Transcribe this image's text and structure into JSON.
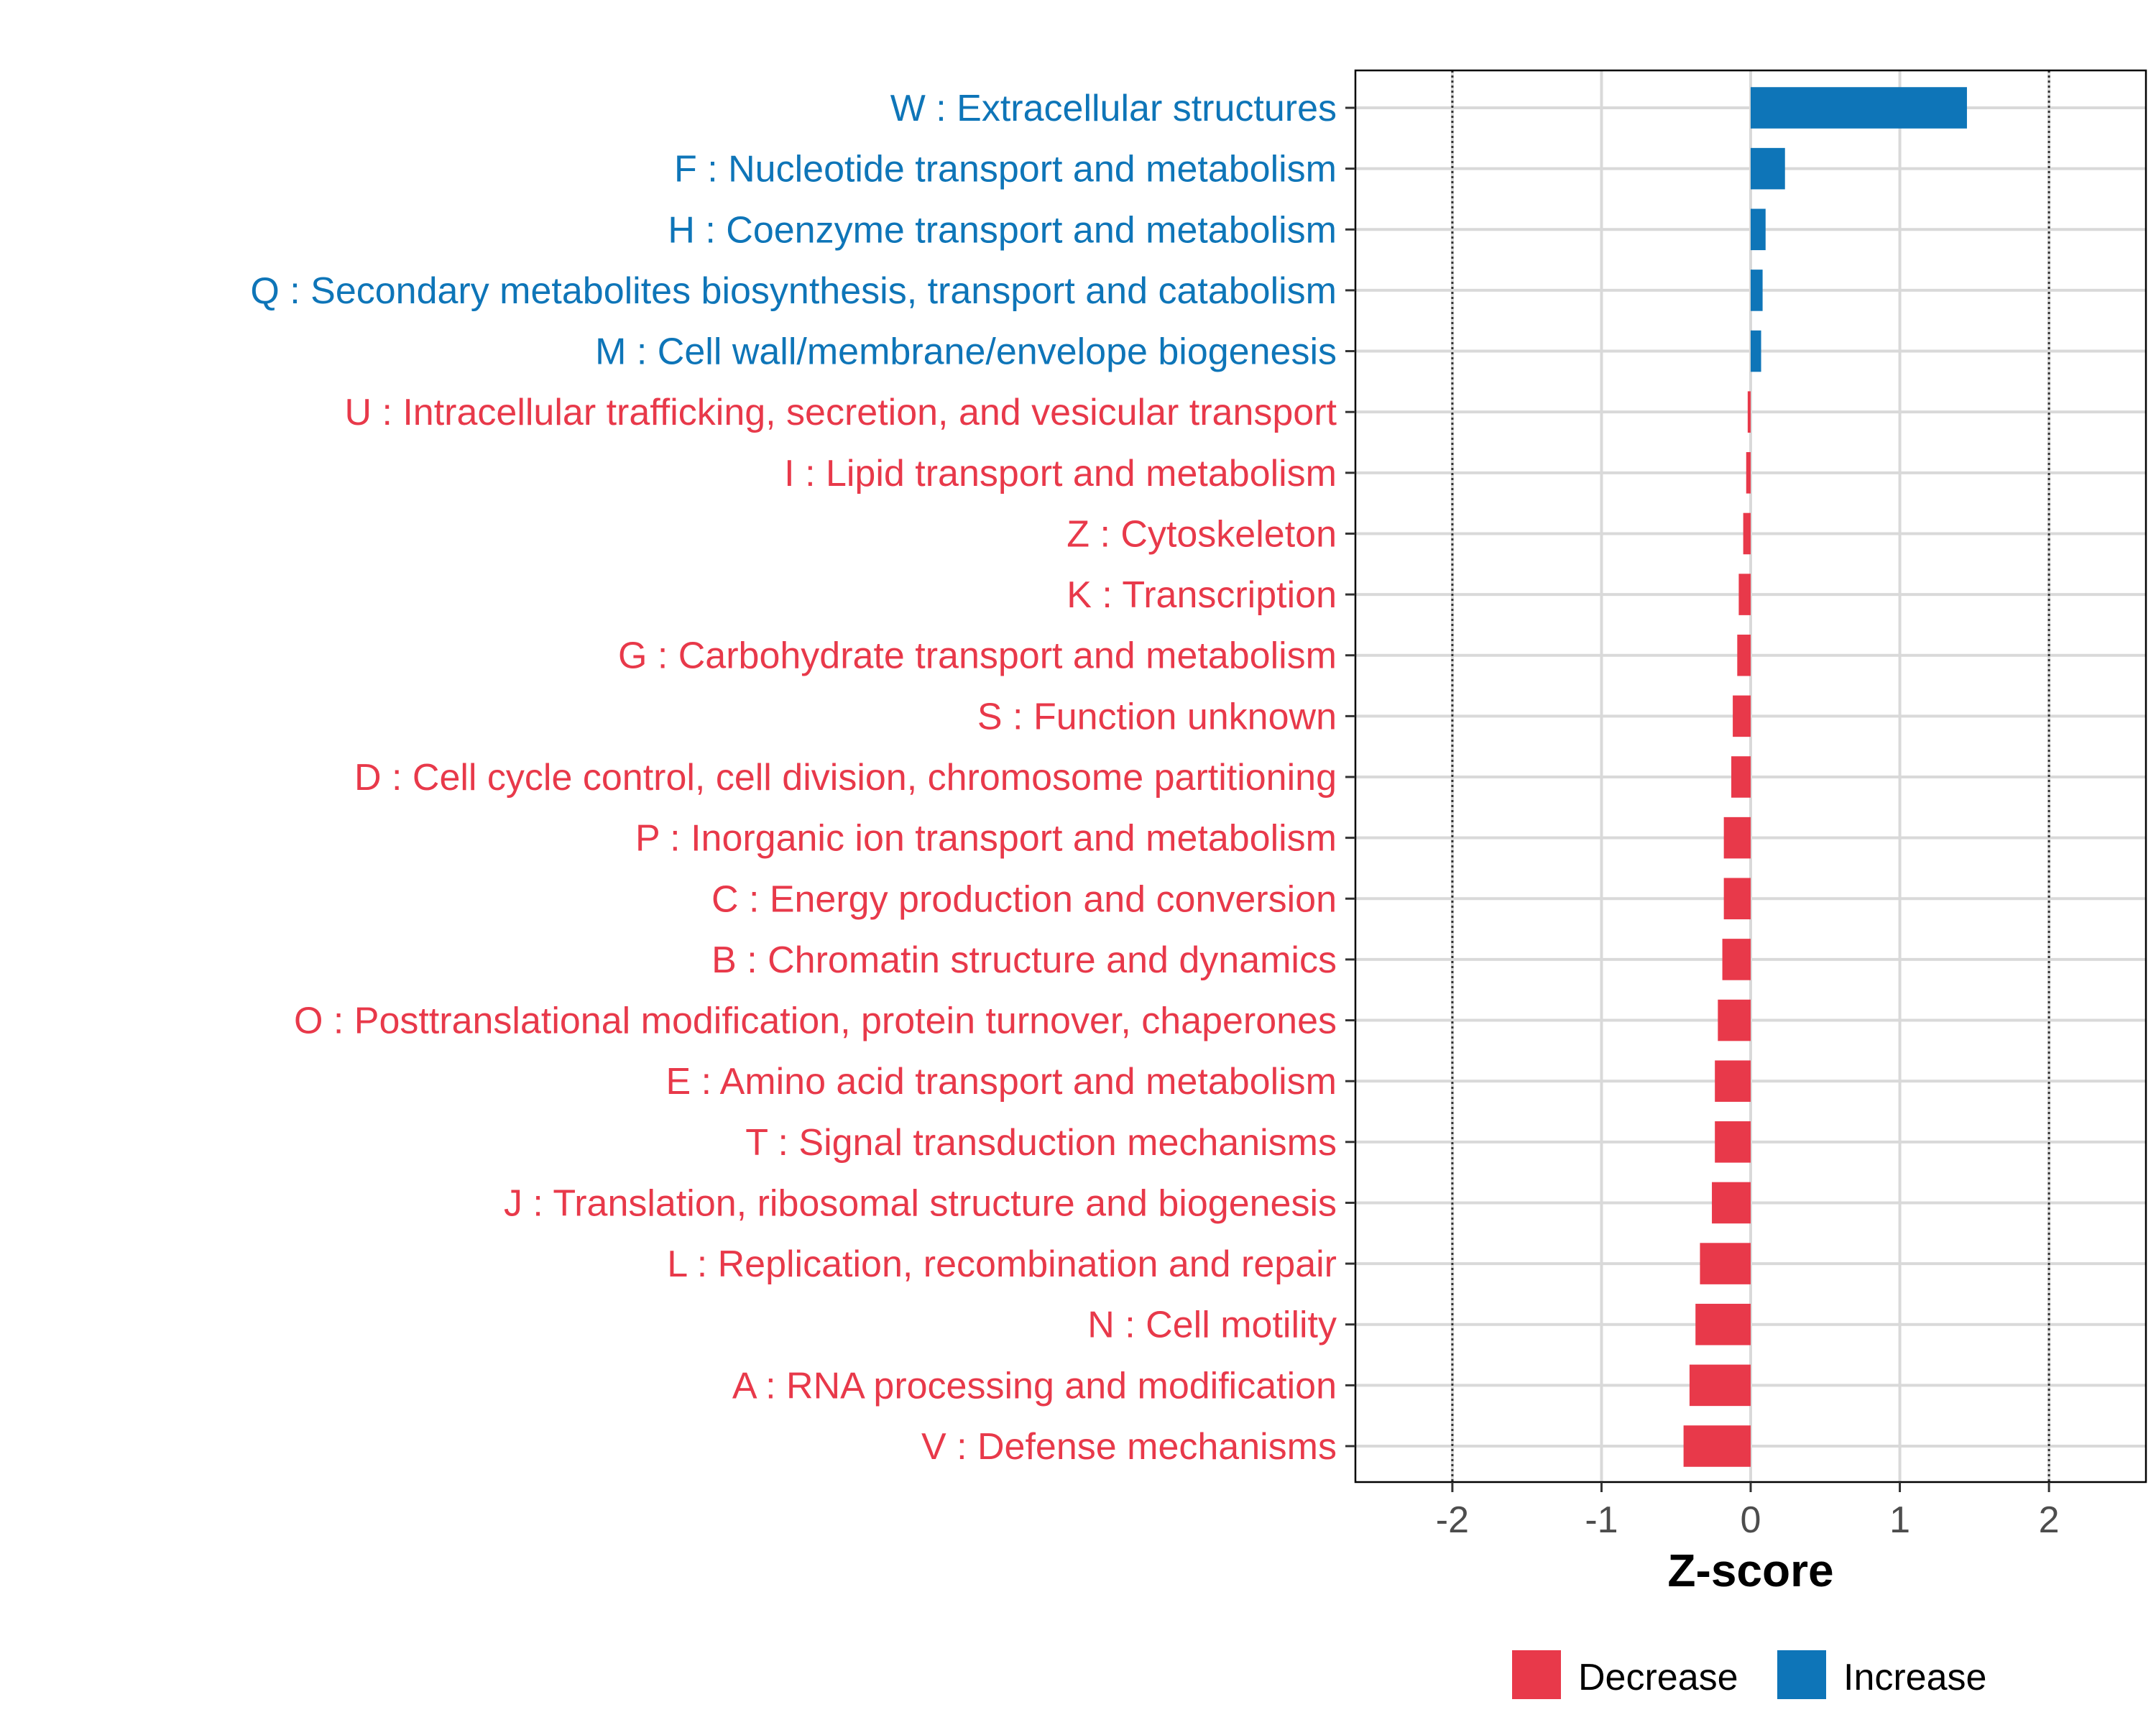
{
  "chart_data": {
    "type": "bar",
    "orientation": "horizontal",
    "title": "",
    "xlabel": "Z-score",
    "ylabel": "",
    "xlim": [
      -2.65,
      2.65
    ],
    "xticks": [
      -2,
      -1,
      0,
      1,
      2
    ],
    "xtick_labels": [
      "-2",
      "-1",
      "0",
      "1",
      "2"
    ],
    "reference_lines": [
      -2,
      2
    ],
    "grid": true,
    "colors": {
      "Decrease": "#E8394A",
      "Increase": "#0E75B8"
    },
    "categories": [
      "W : Extracellular structures",
      "F : Nucleotide transport and metabolism",
      "H : Coenzyme transport and metabolism",
      "Q : Secondary metabolites biosynthesis, transport and catabolism",
      "M : Cell wall/membrane/envelope biogenesis",
      "U : Intracellular trafficking, secretion, and vesicular transport",
      "I : Lipid transport and metabolism",
      "Z : Cytoskeleton",
      "K : Transcription",
      "G : Carbohydrate transport and metabolism",
      "S : Function unknown",
      "D : Cell cycle control, cell division, chromosome partitioning",
      "P : Inorganic ion transport and metabolism",
      "C : Energy production and conversion",
      "B : Chromatin structure and dynamics",
      "O : Posttranslational modification, protein turnover, chaperones",
      "E : Amino acid transport and metabolism",
      "T : Signal transduction mechanisms",
      "J : Translation, ribosomal structure and biogenesis",
      "L : Replication, recombination and repair",
      "N : Cell motility",
      "A : RNA processing and modification",
      "V : Defense mechanisms"
    ],
    "values": [
      1.45,
      0.23,
      0.1,
      0.08,
      0.07,
      -0.02,
      -0.03,
      -0.05,
      -0.08,
      -0.09,
      -0.12,
      -0.13,
      -0.18,
      -0.18,
      -0.19,
      -0.22,
      -0.24,
      -0.24,
      -0.26,
      -0.34,
      -0.37,
      -0.41,
      -0.45
    ],
    "groups": [
      "Increase",
      "Increase",
      "Increase",
      "Increase",
      "Increase",
      "Decrease",
      "Decrease",
      "Decrease",
      "Decrease",
      "Decrease",
      "Decrease",
      "Decrease",
      "Decrease",
      "Decrease",
      "Decrease",
      "Decrease",
      "Decrease",
      "Decrease",
      "Decrease",
      "Decrease",
      "Decrease",
      "Decrease",
      "Decrease"
    ],
    "legend": {
      "position": "bottom",
      "entries": [
        "Decrease",
        "Increase"
      ]
    }
  }
}
